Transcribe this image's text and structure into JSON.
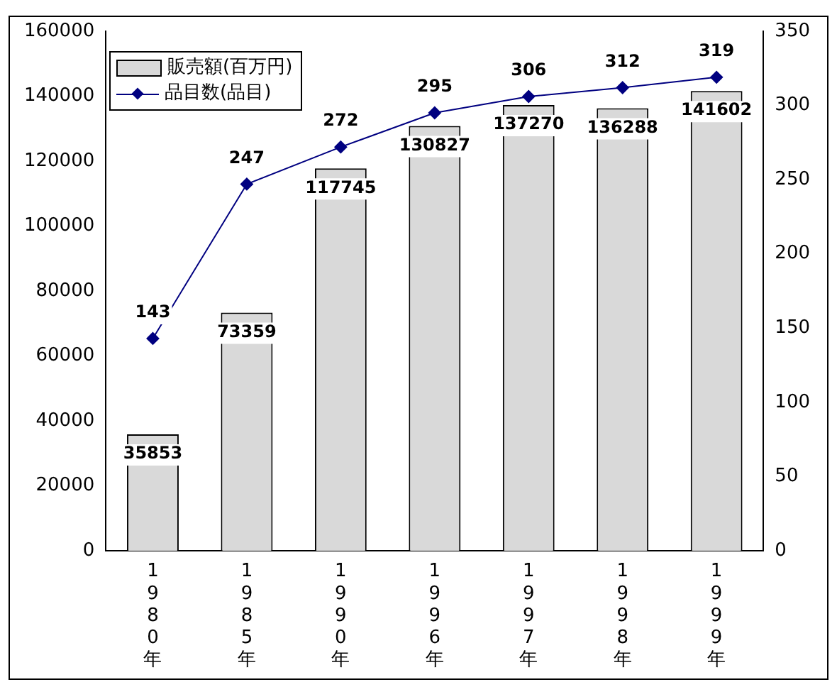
{
  "chart_data": {
    "type": "bar",
    "categories": [
      "1980年",
      "1985年",
      "1990年",
      "1996年",
      "1997年",
      "1998年",
      "1999年"
    ],
    "series": [
      {
        "name": "販売額(百万円)",
        "color": "#d9d9d9",
        "values": [
          35853,
          73359,
          117745,
          130827,
          137270,
          136288,
          141602
        ]
      },
      {
        "name": "品目数(品目)",
        "type": "line",
        "axis": "y2",
        "color": "#000080",
        "values": [
          143,
          247,
          272,
          295,
          306,
          312,
          319
        ]
      }
    ],
    "ylim": [
      0,
      160000
    ],
    "yticks": [
      0,
      20000,
      40000,
      60000,
      80000,
      100000,
      120000,
      140000,
      160000
    ],
    "y2lim": [
      0,
      350
    ],
    "y2ticks": [
      0,
      50,
      100,
      150,
      200,
      250,
      300,
      350
    ],
    "grid": false,
    "legend": "top left",
    "marker": "diamond",
    "line_style": "solid",
    "data_labels": true
  }
}
